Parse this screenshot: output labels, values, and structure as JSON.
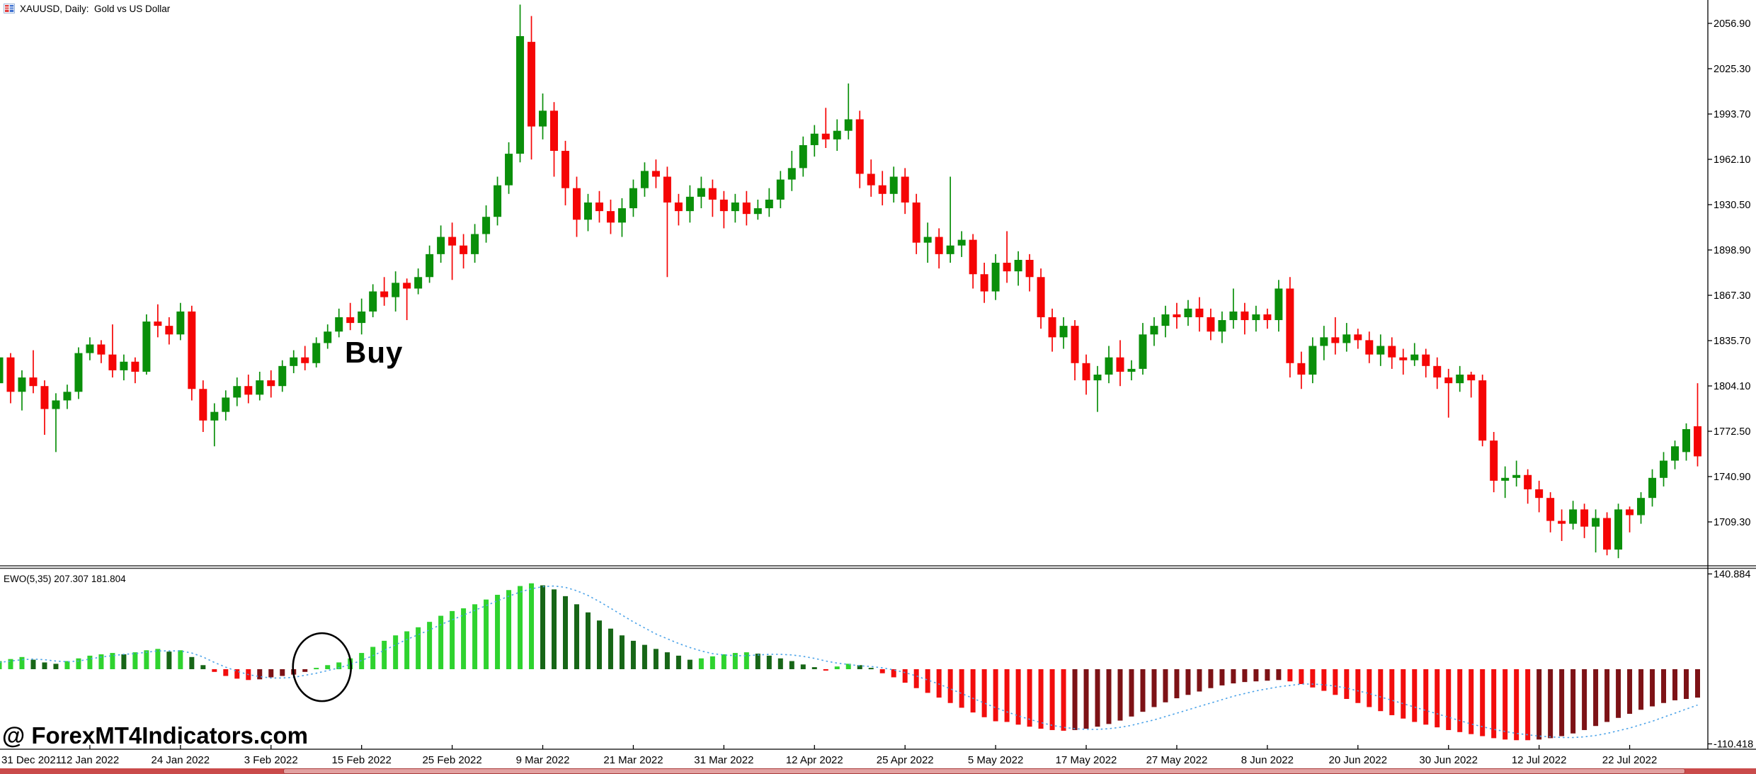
{
  "header": {
    "title": "XAUUSD, Daily:  Gold vs US Dollar"
  },
  "annotations": {
    "buy": "Buy",
    "watermark": "@ ForexMT4Indicators.com"
  },
  "indicator_panel": {
    "label": "EWO(5,35) 207.307 181.804",
    "axis_max_label": "140.884",
    "axis_min_label": "-110.418"
  },
  "price_axis_labels": [
    "2056.90",
    "2025.30",
    "1993.70",
    "1962.10",
    "1930.50",
    "1898.90",
    "1867.30",
    "1835.70",
    "1804.10",
    "1772.50",
    "1740.90",
    "1709.30"
  ],
  "time_axis_labels": [
    "31 Dec 2021",
    "12 Jan 2022",
    "24 Jan 2022",
    "3 Feb 2022",
    "15 Feb 2022",
    "25 Feb 2022",
    "9 Mar 2022",
    "21 Mar 2022",
    "31 Mar 2022",
    "12 Apr 2022",
    "25 Apr 2022",
    "5 May 2022",
    "17 May 2022",
    "27 May 2022",
    "8 Jun 2022",
    "20 Jun 2022",
    "30 Jun 2022",
    "12 Jul 2022",
    "22 Jul 2022"
  ],
  "colors": {
    "background": "#ffffff",
    "axis_line": "#000000",
    "bull_candle": "#0a8f0a",
    "bear_candle": "#f50505",
    "osc_rising_positive": "#2fd32f",
    "osc_falling_positive": "#176617",
    "osc_falling_negative": "#f20d0d",
    "osc_rising_negative": "#7d1216",
    "signal_line": "#4aa2e8",
    "annotation_circle": "#000000",
    "scrollbar_track": "#c94b4b",
    "scrollbar_thumb": "#e2a1a1",
    "scrollbar_thumb_border": "#aa3d3d"
  },
  "chart_data": {
    "type": "candlestick",
    "symbol": "XAUUSD",
    "timeframe": "Daily",
    "description": "Gold vs US Dollar",
    "title": "XAUUSD, Daily: Gold vs US Dollar",
    "price_axis": {
      "first_tick": 2056.9,
      "tick_step": 31.6,
      "last_tick": 1709.3,
      "visible_min": 1679,
      "visible_max": 2073
    },
    "time_axis": {
      "labels_every_n_candles": 8,
      "first_label_candle_index": 0
    },
    "candles_ohlc": [
      [
        1806,
        1828,
        1800,
        1824
      ],
      [
        1824,
        1827,
        1792,
        1800
      ],
      [
        1800,
        1815,
        1787,
        1810
      ],
      [
        1810,
        1829,
        1799,
        1804
      ],
      [
        1804,
        1808,
        1770,
        1788
      ],
      [
        1788,
        1799,
        1758,
        1794
      ],
      [
        1794,
        1805,
        1788,
        1800
      ],
      [
        1800,
        1831,
        1795,
        1827
      ],
      [
        1827,
        1838,
        1822,
        1833
      ],
      [
        1833,
        1836,
        1820,
        1826
      ],
      [
        1826,
        1847,
        1810,
        1815
      ],
      [
        1815,
        1826,
        1808,
        1821
      ],
      [
        1821,
        1824,
        1806,
        1814
      ],
      [
        1814,
        1854,
        1812,
        1849
      ],
      [
        1849,
        1861,
        1838,
        1846
      ],
      [
        1846,
        1852,
        1833,
        1840
      ],
      [
        1840,
        1862,
        1836,
        1856
      ],
      [
        1856,
        1860,
        1794,
        1802
      ],
      [
        1802,
        1808,
        1772,
        1780
      ],
      [
        1780,
        1792,
        1762,
        1786
      ],
      [
        1786,
        1801,
        1780,
        1796
      ],
      [
        1796,
        1810,
        1790,
        1804
      ],
      [
        1804,
        1812,
        1792,
        1798
      ],
      [
        1798,
        1814,
        1794,
        1808
      ],
      [
        1808,
        1815,
        1796,
        1804
      ],
      [
        1804,
        1822,
        1800,
        1818
      ],
      [
        1818,
        1829,
        1813,
        1824
      ],
      [
        1824,
        1832,
        1815,
        1820
      ],
      [
        1820,
        1838,
        1817,
        1834
      ],
      [
        1834,
        1847,
        1830,
        1842
      ],
      [
        1842,
        1858,
        1838,
        1852
      ],
      [
        1852,
        1862,
        1843,
        1848
      ],
      [
        1848,
        1865,
        1840,
        1856
      ],
      [
        1856,
        1875,
        1852,
        1870
      ],
      [
        1870,
        1880,
        1860,
        1866
      ],
      [
        1866,
        1884,
        1856,
        1876
      ],
      [
        1876,
        1879,
        1850,
        1872
      ],
      [
        1872,
        1886,
        1868,
        1880
      ],
      [
        1880,
        1902,
        1876,
        1896
      ],
      [
        1896,
        1916,
        1890,
        1908
      ],
      [
        1908,
        1918,
        1878,
        1902
      ],
      [
        1902,
        1910,
        1886,
        1896
      ],
      [
        1896,
        1917,
        1890,
        1910
      ],
      [
        1910,
        1930,
        1904,
        1922
      ],
      [
        1922,
        1950,
        1916,
        1944
      ],
      [
        1944,
        1974,
        1938,
        1966
      ],
      [
        1966,
        2070,
        1960,
        2048
      ],
      [
        2044,
        2062,
        1962,
        1985
      ],
      [
        1985,
        2008,
        1976,
        1996
      ],
      [
        1996,
        2002,
        1950,
        1968
      ],
      [
        1968,
        1975,
        1930,
        1942
      ],
      [
        1942,
        1950,
        1908,
        1920
      ],
      [
        1920,
        1938,
        1912,
        1932
      ],
      [
        1932,
        1940,
        1918,
        1926
      ],
      [
        1926,
        1934,
        1910,
        1918
      ],
      [
        1918,
        1935,
        1908,
        1928
      ],
      [
        1928,
        1948,
        1922,
        1942
      ],
      [
        1942,
        1960,
        1936,
        1954
      ],
      [
        1954,
        1962,
        1942,
        1950
      ],
      [
        1950,
        1957,
        1880,
        1932
      ],
      [
        1932,
        1938,
        1916,
        1926
      ],
      [
        1926,
        1944,
        1918,
        1936
      ],
      [
        1936,
        1950,
        1928,
        1942
      ],
      [
        1942,
        1948,
        1922,
        1934
      ],
      [
        1934,
        1940,
        1914,
        1926
      ],
      [
        1926,
        1938,
        1918,
        1932
      ],
      [
        1932,
        1940,
        1916,
        1924
      ],
      [
        1924,
        1934,
        1920,
        1928
      ],
      [
        1928,
        1942,
        1922,
        1934
      ],
      [
        1934,
        1954,
        1928,
        1948
      ],
      [
        1948,
        1968,
        1940,
        1956
      ],
      [
        1956,
        1978,
        1950,
        1972
      ],
      [
        1972,
        1986,
        1964,
        1980
      ],
      [
        1980,
        1998,
        1970,
        1976
      ],
      [
        1976,
        1990,
        1968,
        1982
      ],
      [
        1982,
        2015,
        1976,
        1990
      ],
      [
        1990,
        1996,
        1942,
        1952
      ],
      [
        1952,
        1962,
        1936,
        1944
      ],
      [
        1944,
        1954,
        1930,
        1938
      ],
      [
        1938,
        1957,
        1932,
        1950
      ],
      [
        1950,
        1956,
        1924,
        1932
      ],
      [
        1932,
        1938,
        1896,
        1904
      ],
      [
        1904,
        1918,
        1890,
        1908
      ],
      [
        1908,
        1914,
        1886,
        1896
      ],
      [
        1896,
        1950,
        1890,
        1902
      ],
      [
        1902,
        1912,
        1894,
        1906
      ],
      [
        1906,
        1910,
        1872,
        1882
      ],
      [
        1882,
        1890,
        1862,
        1870
      ],
      [
        1870,
        1896,
        1864,
        1890
      ],
      [
        1890,
        1912,
        1876,
        1884
      ],
      [
        1884,
        1898,
        1874,
        1892
      ],
      [
        1892,
        1896,
        1870,
        1880
      ],
      [
        1880,
        1886,
        1844,
        1852
      ],
      [
        1852,
        1858,
        1828,
        1838
      ],
      [
        1838,
        1852,
        1830,
        1846
      ],
      [
        1846,
        1850,
        1808,
        1820
      ],
      [
        1820,
        1826,
        1798,
        1808
      ],
      [
        1808,
        1818,
        1786,
        1812
      ],
      [
        1812,
        1832,
        1806,
        1824
      ],
      [
        1824,
        1836,
        1804,
        1814
      ],
      [
        1814,
        1822,
        1808,
        1816
      ],
      [
        1816,
        1848,
        1812,
        1840
      ],
      [
        1840,
        1852,
        1832,
        1846
      ],
      [
        1846,
        1860,
        1838,
        1854
      ],
      [
        1854,
        1862,
        1844,
        1852
      ],
      [
        1852,
        1864,
        1846,
        1858
      ],
      [
        1858,
        1866,
        1842,
        1852
      ],
      [
        1852,
        1858,
        1836,
        1842
      ],
      [
        1842,
        1856,
        1834,
        1850
      ],
      [
        1850,
        1872,
        1844,
        1856
      ],
      [
        1856,
        1862,
        1840,
        1850
      ],
      [
        1850,
        1860,
        1842,
        1854
      ],
      [
        1854,
        1858,
        1844,
        1850
      ],
      [
        1850,
        1878,
        1842,
        1872
      ],
      [
        1872,
        1880,
        1810,
        1820
      ],
      [
        1820,
        1828,
        1802,
        1812
      ],
      [
        1812,
        1838,
        1806,
        1832
      ],
      [
        1832,
        1846,
        1822,
        1838
      ],
      [
        1838,
        1852,
        1826,
        1834
      ],
      [
        1834,
        1848,
        1828,
        1840
      ],
      [
        1840,
        1844,
        1830,
        1836
      ],
      [
        1836,
        1842,
        1820,
        1826
      ],
      [
        1826,
        1840,
        1818,
        1832
      ],
      [
        1832,
        1838,
        1816,
        1824
      ],
      [
        1824,
        1830,
        1812,
        1822
      ],
      [
        1822,
        1834,
        1818,
        1826
      ],
      [
        1826,
        1830,
        1810,
        1818
      ],
      [
        1818,
        1824,
        1802,
        1810
      ],
      [
        1810,
        1816,
        1782,
        1806
      ],
      [
        1806,
        1818,
        1800,
        1812
      ],
      [
        1812,
        1814,
        1796,
        1808
      ],
      [
        1808,
        1812,
        1762,
        1766
      ],
      [
        1766,
        1772,
        1730,
        1738
      ],
      [
        1738,
        1748,
        1726,
        1740
      ],
      [
        1740,
        1752,
        1734,
        1742
      ],
      [
        1742,
        1746,
        1722,
        1732
      ],
      [
        1732,
        1738,
        1716,
        1726
      ],
      [
        1726,
        1730,
        1702,
        1710
      ],
      [
        1710,
        1718,
        1696,
        1708
      ],
      [
        1708,
        1724,
        1704,
        1718
      ],
      [
        1718,
        1722,
        1698,
        1706
      ],
      [
        1706,
        1718,
        1688,
        1712
      ],
      [
        1712,
        1716,
        1686,
        1690
      ],
      [
        1690,
        1722,
        1684,
        1718
      ],
      [
        1718,
        1720,
        1702,
        1714
      ],
      [
        1714,
        1730,
        1708,
        1726
      ],
      [
        1726,
        1746,
        1720,
        1740
      ],
      [
        1740,
        1758,
        1734,
        1752
      ],
      [
        1752,
        1766,
        1746,
        1762
      ],
      [
        1758,
        1778,
        1752,
        1774
      ],
      [
        1776,
        1806,
        1748,
        1755
      ]
    ],
    "oscillator": {
      "name": "EWO",
      "params": [
        5,
        35
      ],
      "displayed_values": [
        207.307,
        181.804
      ],
      "axis_max": 140.884,
      "axis_min": -110.418,
      "values": [
        12,
        15,
        18,
        14,
        10,
        8,
        12,
        16,
        20,
        22,
        24,
        22,
        25,
        28,
        30,
        26,
        28,
        18,
        6,
        -4,
        -10,
        -14,
        -16,
        -15,
        -12,
        -10,
        -8,
        -4,
        2,
        6,
        10,
        16,
        24,
        33,
        42,
        50,
        56,
        62,
        70,
        79,
        86,
        90,
        96,
        103,
        110,
        117,
        123,
        127,
        124,
        118,
        108,
        96,
        84,
        72,
        60,
        50,
        42,
        36,
        30,
        25,
        20,
        14,
        16,
        19,
        22,
        24,
        25,
        23,
        20,
        16,
        12,
        7,
        3,
        -2,
        4,
        8,
        6,
        2,
        -6,
        -12,
        -20,
        -28,
        -35,
        -42,
        -50,
        -57,
        -64,
        -71,
        -77,
        -78,
        -82,
        -85,
        -88,
        -90,
        -91,
        -90,
        -88,
        -85,
        -81,
        -76,
        -70,
        -63,
        -56,
        -49,
        -43,
        -38,
        -33,
        -28,
        -24,
        -21,
        -19,
        -18,
        -17,
        -16,
        -18,
        -22,
        -27,
        -32,
        -38,
        -44,
        -50,
        -56,
        -62,
        -68,
        -73,
        -78,
        -82,
        -86,
        -90,
        -93,
        -96,
        -99,
        -102,
        -104,
        -105,
        -105,
        -104,
        -102,
        -99,
        -95,
        -90,
        -84,
        -78,
        -72,
        -66,
        -60,
        -55,
        -50,
        -46,
        -44,
        -42
      ],
      "signal": [
        10,
        12,
        14,
        15,
        14,
        12,
        11,
        12,
        15,
        18,
        20,
        22,
        23,
        25,
        27,
        27,
        27,
        24,
        18,
        10,
        3,
        -3,
        -8,
        -11,
        -13,
        -13,
        -12,
        -9,
        -6,
        -2,
        2,
        7,
        13,
        20,
        28,
        36,
        44,
        51,
        58,
        66,
        73,
        80,
        87,
        94,
        101,
        108,
        114,
        119,
        122,
        123,
        121,
        116,
        109,
        100,
        90,
        80,
        70,
        61,
        52,
        45,
        38,
        32,
        27,
        23,
        21,
        20,
        20,
        21,
        22,
        22,
        21,
        19,
        16,
        12,
        9,
        7,
        5,
        4,
        2,
        -1,
        -5,
        -10,
        -16,
        -22,
        -29,
        -36,
        -43,
        -50,
        -57,
        -63,
        -69,
        -74,
        -79,
        -83,
        -86,
        -88,
        -89,
        -89,
        -88,
        -86,
        -83,
        -79,
        -75,
        -70,
        -65,
        -60,
        -55,
        -50,
        -45,
        -40,
        -36,
        -32,
        -29,
        -26,
        -24,
        -22,
        -22,
        -23,
        -25,
        -28,
        -32,
        -36,
        -41,
        -46,
        -51,
        -56,
        -61,
        -66,
        -71,
        -76,
        -81,
        -85,
        -89,
        -92,
        -95,
        -97,
        -99,
        -100,
        -101,
        -101,
        -100,
        -98,
        -95,
        -91,
        -87,
        -82,
        -77,
        -71,
        -65,
        -59,
        -53
      ]
    },
    "highlight_ellipse": {
      "candle_index_center": 28.5,
      "center_value": 3,
      "note": "circle around oscillator zero-cross before rally"
    }
  }
}
